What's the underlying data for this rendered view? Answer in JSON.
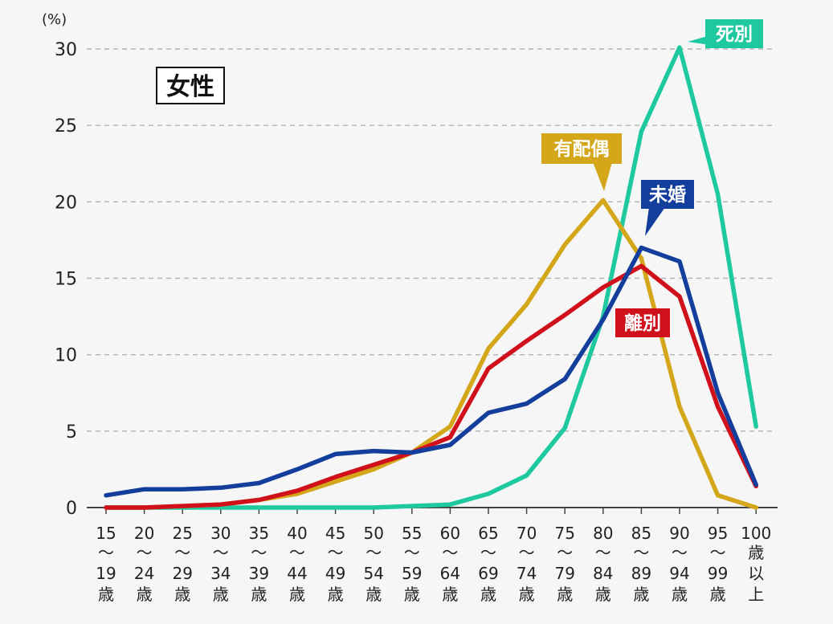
{
  "chart_data": {
    "type": "line",
    "title": "女性",
    "ylabel": "(%)",
    "xlabel": "",
    "ylim": [
      0,
      30
    ],
    "yticks": [
      "0",
      "5",
      "10",
      "15",
      "20",
      "25",
      "30"
    ],
    "grid": true,
    "categories": [
      [
        "15",
        "〜",
        "19",
        "歳"
      ],
      [
        "20",
        "〜",
        "24",
        "歳"
      ],
      [
        "25",
        "〜",
        "29",
        "歳"
      ],
      [
        "30",
        "〜",
        "34",
        "歳"
      ],
      [
        "35",
        "〜",
        "39",
        "歳"
      ],
      [
        "40",
        "〜",
        "44",
        "歳"
      ],
      [
        "45",
        "〜",
        "49",
        "歳"
      ],
      [
        "50",
        "〜",
        "54",
        "歳"
      ],
      [
        "55",
        "〜",
        "59",
        "歳"
      ],
      [
        "60",
        "〜",
        "64",
        "歳"
      ],
      [
        "65",
        "〜",
        "69",
        "歳"
      ],
      [
        "70",
        "〜",
        "74",
        "歳"
      ],
      [
        "75",
        "〜",
        "79",
        "歳"
      ],
      [
        "80",
        "〜",
        "84",
        "歳"
      ],
      [
        "85",
        "〜",
        "89",
        "歳"
      ],
      [
        "90",
        "〜",
        "94",
        "歳"
      ],
      [
        "95",
        "〜",
        "99",
        "歳"
      ],
      [
        "100",
        "歳",
        "以",
        "上"
      ]
    ],
    "series": [
      {
        "name": "死別",
        "color": "#1fc9a0",
        "values": [
          0.0,
          0.0,
          0.0,
          0.0,
          0.0,
          0.0,
          0.0,
          0.0,
          0.1,
          0.2,
          0.9,
          2.1,
          5.2,
          12.5,
          24.6,
          30.1,
          20.5,
          5.3
        ]
      },
      {
        "name": "有配偶",
        "color": "#d4a619",
        "values": [
          0.0,
          0.0,
          0.1,
          0.2,
          0.5,
          0.9,
          1.7,
          2.5,
          3.6,
          5.3,
          10.4,
          13.3,
          17.2,
          20.1,
          16.3,
          6.6,
          0.8,
          0.0
        ]
      },
      {
        "name": "離別",
        "color": "#d0111c",
        "values": [
          0.0,
          0.0,
          0.1,
          0.2,
          0.5,
          1.1,
          2.0,
          2.8,
          3.6,
          4.6,
          9.1,
          10.9,
          12.6,
          14.4,
          15.8,
          13.8,
          6.6,
          1.4
        ]
      },
      {
        "name": "未婚",
        "color": "#143e9b",
        "values": [
          0.8,
          1.2,
          1.2,
          1.3,
          1.6,
          2.5,
          3.5,
          3.7,
          3.6,
          4.1,
          6.2,
          6.8,
          8.4,
          12.3,
          17.0,
          16.1,
          7.5,
          1.5
        ]
      }
    ]
  }
}
